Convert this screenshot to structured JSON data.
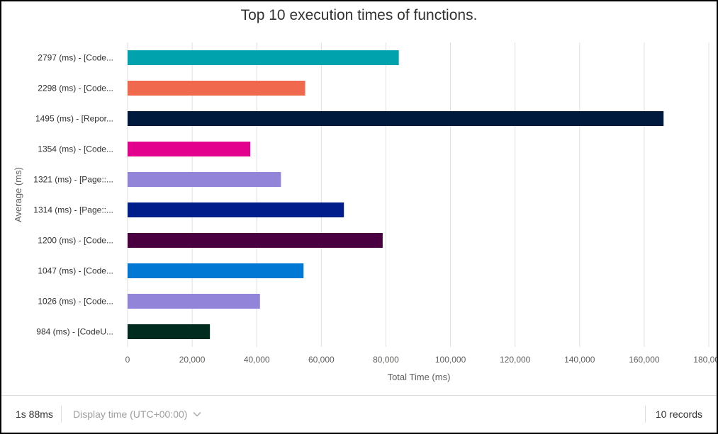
{
  "chart_data": {
    "type": "bar",
    "orientation": "horizontal",
    "title": "Top 10 execution times of functions.",
    "xlabel": "Total Time (ms)",
    "ylabel": "Average (ms)",
    "xlim": [
      0,
      180000
    ],
    "xticks": [
      0,
      20000,
      40000,
      60000,
      80000,
      100000,
      120000,
      140000,
      160000,
      180000
    ],
    "xtick_labels": [
      "0",
      "20,000",
      "40,000",
      "60,000",
      "80,000",
      "100,000",
      "120,000",
      "140,000",
      "160,000",
      "180,000"
    ],
    "grid": "vertical",
    "categories": [
      "2797 (ms) - [Code...",
      "2298 (ms) - [Code...",
      "1495 (ms) - [Repor...",
      "1354 (ms) - [Code...",
      "1321 (ms) - [Page::...",
      "1314 (ms) - [Page::...",
      "1200 (ms) - [Code...",
      "1047 (ms) - [Code...",
      "1026 (ms) - [Code...",
      "984 (ms) - [CodeU..."
    ],
    "values": [
      84000,
      55000,
      166000,
      38000,
      47500,
      67000,
      79000,
      54500,
      41000,
      25500
    ],
    "colors": [
      "#00a2ad",
      "#f0694f",
      "#001a3d",
      "#e3008c",
      "#9184d9",
      "#001d8c",
      "#4a0040",
      "#0078d4",
      "#9184d9",
      "#002b1f"
    ]
  },
  "footer": {
    "execution_time": "1s 88ms",
    "display_time": "Display time (UTC+00:00)",
    "records": "10 records"
  }
}
